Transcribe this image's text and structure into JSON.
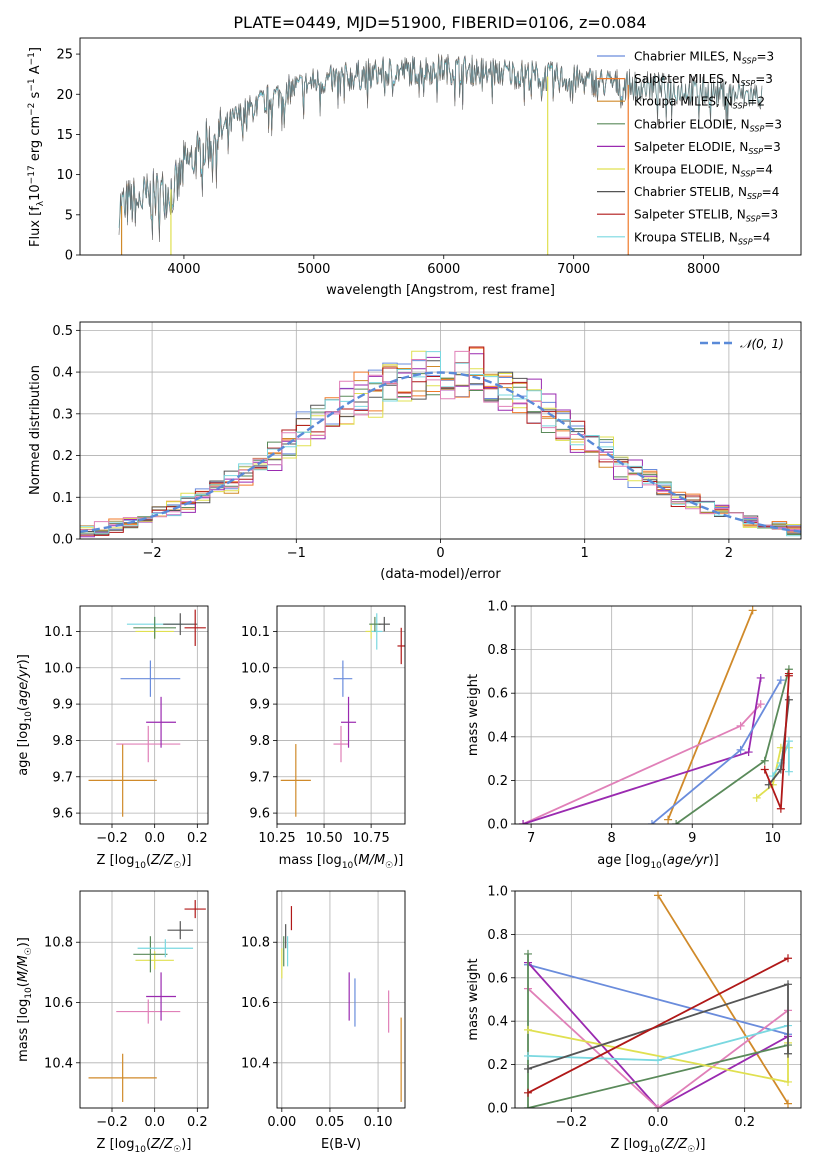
{
  "figure": {
    "title": "PLATE=0449, MJD=51900, FIBERID=0106, z=0.084",
    "colors": {
      "Chabrier MILES": "#6a8cdc",
      "Salpeter MILES": "#f07a2a",
      "Kroupa MILES": "#d08a2a",
      "Chabrier ELODIE": "#5a8a5a",
      "Salpeter ELODIE": "#9a2ab0",
      "Kroupa ELODIE": "#e0e050",
      "Chabrier STELIB": "#555555",
      "Salpeter STELIB": "#b01818",
      "Kroupa STELIB": "#7ad8e0",
      "pink": "#e080b8",
      "gaussian": "#5a8ad8"
    }
  },
  "chart_data": [
    {
      "id": "spectrum",
      "type": "line",
      "title": "PLATE=0449, MJD=51900, FIBERID=0106, z=0.084",
      "xlabel": "wavelength [Angstrom, rest frame]",
      "ylabel": "Flux [f_λ10^-17 erg cm^-2 s^-1 A^-1]",
      "xlim": [
        3200,
        8750
      ],
      "ylim": [
        0,
        27
      ],
      "xticks": [
        4000,
        5000,
        6000,
        7000,
        8000
      ],
      "yticks": [
        0,
        5,
        10,
        15,
        20,
        25
      ],
      "legend": "right",
      "legend_entries": [
        {
          "model": "Chabrier MILES",
          "n": "3"
        },
        {
          "model": "Salpeter MILES",
          "n": "3"
        },
        {
          "model": "Kroupa MILES",
          "n": "2"
        },
        {
          "model": "Chabrier ELODIE",
          "n": "3"
        },
        {
          "model": "Salpeter ELODIE",
          "n": "3"
        },
        {
          "model": "Kroupa ELODIE",
          "n": "4"
        },
        {
          "model": "Chabrier STELIB",
          "n": "4"
        },
        {
          "model": "Salpeter STELIB",
          "n": "3"
        },
        {
          "model": "Kroupa STELIB",
          "n": "4"
        }
      ],
      "continuum": {
        "x": [
          3500,
          3800,
          3950,
          4000,
          4200,
          4400,
          4600,
          4800,
          5000,
          5200,
          5400,
          5600,
          5800,
          6000,
          6200,
          6400,
          6600,
          6800,
          7000,
          7200,
          7400,
          7600,
          7800,
          8000,
          8200,
          8450
        ],
        "y": [
          6,
          7.5,
          8.5,
          11,
          14,
          17,
          19,
          20.5,
          21.5,
          22,
          22.5,
          22.8,
          23,
          23.2,
          23,
          22.8,
          22.5,
          22.2,
          21.8,
          21.5,
          21.2,
          20.9,
          20.6,
          20.3,
          20,
          19.8
        ]
      },
      "model_ranges": [
        {
          "model": "Kroupa STELIB",
          "x": [
            3500,
            8450
          ]
        },
        {
          "model": "Chabrier MILES",
          "x": [
            3540,
            7410
          ]
        },
        {
          "model": "Salpeter MILES",
          "x": [
            3540,
            7410
          ]
        },
        {
          "model": "Kroupa MILES",
          "x": [
            3540,
            7410
          ]
        }
      ],
      "drops": [
        {
          "model": "Kroupa MILES",
          "x": 3520
        },
        {
          "model": "Kroupa ELODIE",
          "x": 3900
        },
        {
          "model": "Kroupa ELODIE",
          "x": 6800
        },
        {
          "model": "Salpeter MILES",
          "x": 7420
        }
      ]
    },
    {
      "id": "residuals",
      "type": "line",
      "xlabel": "(data-model)/error",
      "ylabel": "Normed distribution",
      "xlim": [
        -2.5,
        2.5
      ],
      "ylim": [
        0,
        0.52
      ],
      "xticks": [
        -2,
        -1,
        0,
        1,
        2
      ],
      "yticks": [
        0.0,
        0.1,
        0.2,
        0.3,
        0.4,
        0.5
      ],
      "legend": "top-right",
      "legend_label": "𝒩(0, 1)",
      "bin_width": 0.1
    },
    {
      "id": "age-vs-Z",
      "type": "scatter",
      "xlabel": "Z [log10(Z/Z☉)]",
      "ylabel": "age  [log10(age/yr)]",
      "xlim": [
        -0.35,
        0.25
      ],
      "ylim": [
        9.57,
        10.17
      ],
      "xticks": [
        -0.2,
        0.0,
        0.2
      ],
      "yticks": [
        9.6,
        9.7,
        9.8,
        9.9,
        10.0,
        10.1
      ],
      "points": [
        {
          "model": "Kroupa MILES",
          "x": -0.15,
          "y": 9.69,
          "xerr": 0.16,
          "yerr": 0.1
        },
        {
          "model": "pink",
          "x": -0.03,
          "y": 9.79,
          "xerr": 0.15,
          "yerr": 0.05
        },
        {
          "model": "Salpeter ELODIE",
          "x": 0.03,
          "y": 9.85,
          "xerr": 0.07,
          "yerr": 0.07
        },
        {
          "model": "Chabrier MILES",
          "x": -0.02,
          "y": 9.97,
          "xerr": 0.14,
          "yerr": 0.05
        },
        {
          "model": "Kroupa ELODIE",
          "x": 0.0,
          "y": 10.1,
          "xerr": 0.09,
          "yerr": 0.02
        },
        {
          "model": "Kroupa STELIB",
          "x": 0.0,
          "y": 10.12,
          "xerr": 0.13,
          "yerr": 0.02
        },
        {
          "model": "Chabrier ELODIE",
          "x": 0.0,
          "y": 10.11,
          "xerr": 0.1,
          "yerr": 0.03
        },
        {
          "model": "Chabrier STELIB",
          "x": 0.12,
          "y": 10.12,
          "xerr": 0.08,
          "yerr": 0.03
        },
        {
          "model": "Salpeter STELIB",
          "x": 0.19,
          "y": 10.11,
          "xerr": 0.05,
          "yerr": 0.05
        }
      ]
    },
    {
      "id": "age-vs-mass",
      "type": "scatter",
      "xlabel": "mass [log10(M/M☉)]",
      "ylabel": "",
      "xlim": [
        10.25,
        10.93
      ],
      "ylim": [
        9.57,
        10.17
      ],
      "xticks": [
        10.25,
        10.5,
        10.75
      ],
      "yticks": [
        9.6,
        9.7,
        9.8,
        9.9,
        10.0,
        10.1
      ],
      "points": [
        {
          "model": "Kroupa MILES",
          "x": 10.35,
          "y": 9.69,
          "xerr": 0.08,
          "yerr": 0.1
        },
        {
          "model": "pink",
          "x": 10.59,
          "y": 9.79,
          "xerr": 0.04,
          "yerr": 0.05
        },
        {
          "model": "Salpeter ELODIE",
          "x": 10.63,
          "y": 9.85,
          "xerr": 0.04,
          "yerr": 0.07
        },
        {
          "model": "Chabrier MILES",
          "x": 10.6,
          "y": 9.97,
          "xerr": 0.05,
          "yerr": 0.05
        },
        {
          "model": "Kroupa ELODIE",
          "x": 10.75,
          "y": 10.1,
          "xerr": 0.03,
          "yerr": 0.02
        },
        {
          "model": "Kroupa STELIB",
          "x": 10.78,
          "y": 10.1,
          "xerr": 0.03,
          "yerr": 0.05
        },
        {
          "model": "Chabrier ELODIE",
          "x": 10.77,
          "y": 10.12,
          "xerr": 0.03,
          "yerr": 0.02
        },
        {
          "model": "Chabrier STELIB",
          "x": 10.82,
          "y": 10.12,
          "xerr": 0.03,
          "yerr": 0.02
        },
        {
          "model": "Salpeter STELIB",
          "x": 10.91,
          "y": 10.06,
          "xerr": 0.02,
          "yerr": 0.05
        }
      ]
    },
    {
      "id": "massweight-vs-age",
      "type": "line",
      "xlabel": "age  [log10(age/yr)]",
      "ylabel": "mass weight",
      "xlim": [
        6.8,
        10.35
      ],
      "ylim": [
        0,
        1
      ],
      "xticks": [
        7,
        8,
        9,
        10
      ],
      "yticks": [
        0.0,
        0.2,
        0.4,
        0.6,
        0.8,
        1.0
      ],
      "series": [
        {
          "model": "Kroupa MILES",
          "x": [
            8.7,
            9.75
          ],
          "y": [
            0.02,
            0.98
          ]
        },
        {
          "model": "pink",
          "x": [
            6.9,
            9.6,
            9.85
          ],
          "y": [
            0.0,
            0.45,
            0.55
          ]
        },
        {
          "model": "Salpeter ELODIE",
          "x": [
            6.9,
            9.7,
            9.85
          ],
          "y": [
            0.0,
            0.33,
            0.67
          ]
        },
        {
          "model": "Chabrier MILES",
          "x": [
            8.5,
            9.6,
            10.1
          ],
          "y": [
            0.0,
            0.34,
            0.66
          ]
        },
        {
          "model": "Chabrier ELODIE",
          "x": [
            8.8,
            9.9,
            10.2
          ],
          "y": [
            0.0,
            0.29,
            0.71
          ]
        },
        {
          "model": "Kroupa ELODIE",
          "x": [
            9.8,
            10.0,
            10.1,
            10.2
          ],
          "y": [
            0.12,
            0.18,
            0.35,
            0.35
          ]
        },
        {
          "model": "Kroupa STELIB",
          "x": [
            10.0,
            10.1,
            10.2,
            10.2
          ],
          "y": [
            0.22,
            0.28,
            0.38,
            0.24
          ]
        },
        {
          "model": "Chabrier STELIB",
          "x": [
            9.95,
            10.1,
            10.2
          ],
          "y": [
            0.18,
            0.25,
            0.57
          ]
        },
        {
          "model": "Salpeter STELIB",
          "x": [
            9.9,
            10.1,
            10.2,
            10.2
          ],
          "y": [
            0.25,
            0.07,
            0.68,
            0.69
          ]
        }
      ]
    },
    {
      "id": "mass-vs-Z",
      "type": "scatter",
      "xlabel": "Z [log10(Z/Z☉)]",
      "ylabel": "mass [log10(M/M☉)]",
      "xlim": [
        -0.35,
        0.25
      ],
      "ylim": [
        10.25,
        10.97
      ],
      "xticks": [
        -0.2,
        0.0,
        0.2
      ],
      "yticks": [
        10.4,
        10.6,
        10.8
      ],
      "points": [
        {
          "model": "Kroupa MILES",
          "x": -0.15,
          "y": 10.35,
          "xerr": 0.16,
          "yerr": 0.08
        },
        {
          "model": "pink",
          "x": -0.03,
          "y": 10.57,
          "xerr": 0.15,
          "yerr": 0.04
        },
        {
          "model": "Salpeter ELODIE",
          "x": 0.03,
          "y": 10.62,
          "xerr": 0.07,
          "yerr": 0.08
        },
        {
          "model": "Kroupa ELODIE",
          "x": 0.0,
          "y": 10.74,
          "xerr": 0.09,
          "yerr": 0.03
        },
        {
          "model": "Chabrier ELODIE",
          "x": -0.02,
          "y": 10.76,
          "xerr": 0.08,
          "yerr": 0.06
        },
        {
          "model": "Kroupa STELIB",
          "x": 0.05,
          "y": 10.78,
          "xerr": 0.13,
          "yerr": 0.03
        },
        {
          "model": "Chabrier STELIB",
          "x": 0.12,
          "y": 10.84,
          "xerr": 0.06,
          "yerr": 0.03
        },
        {
          "model": "Salpeter STELIB",
          "x": 0.19,
          "y": 10.91,
          "xerr": 0.05,
          "yerr": 0.03
        }
      ]
    },
    {
      "id": "mass-vs-ebv",
      "type": "scatter",
      "xlabel": "E(B-V)",
      "ylabel": "",
      "xlim": [
        -0.005,
        0.128
      ],
      "ylim": [
        10.25,
        10.97
      ],
      "xticks": [
        0.0,
        0.05,
        0.1
      ],
      "yticks": [
        10.4,
        10.6,
        10.8
      ],
      "points": [
        {
          "model": "Kroupa MILES",
          "x": 0.124,
          "y": 10.41,
          "yerr": 0.14
        },
        {
          "model": "pink",
          "x": 0.111,
          "y": 10.57,
          "yerr": 0.07
        },
        {
          "model": "Chabrier MILES",
          "x": 0.076,
          "y": 10.6,
          "yerr": 0.08
        },
        {
          "model": "Salpeter ELODIE",
          "x": 0.07,
          "y": 10.62,
          "yerr": 0.08
        },
        {
          "model": "Kroupa ELODIE",
          "x": 0.0,
          "y": 10.73,
          "yerr": 0.05
        },
        {
          "model": "Chabrier ELODIE",
          "x": 0.002,
          "y": 10.77,
          "yerr": 0.05
        },
        {
          "model": "Kroupa STELIB",
          "x": 0.006,
          "y": 10.77,
          "yerr": 0.05
        },
        {
          "model": "Chabrier STELIB",
          "x": 0.004,
          "y": 10.82,
          "yerr": 0.04
        },
        {
          "model": "Salpeter STELIB",
          "x": 0.01,
          "y": 10.88,
          "yerr": 0.04
        }
      ]
    },
    {
      "id": "massweight-vs-Z",
      "type": "line",
      "xlabel": "Z [log10(Z/Z☉)]",
      "ylabel": "mass weight",
      "xlim": [
        -0.33,
        0.33
      ],
      "ylim": [
        0,
        1
      ],
      "xticks": [
        -0.2,
        0.0,
        0.2
      ],
      "yticks": [
        0.0,
        0.2,
        0.4,
        0.6,
        0.8,
        1.0
      ],
      "series": [
        {
          "model": "Kroupa MILES",
          "x": [
            0.0,
            0.3
          ],
          "y": [
            0.98,
            0.02
          ]
        },
        {
          "model": "Chabrier MILES",
          "x": [
            -0.3,
            0.3
          ],
          "y": [
            0.66,
            0.34
          ]
        },
        {
          "model": "Salpeter ELODIE",
          "x": [
            -0.3,
            0.0,
            0.3
          ],
          "y": [
            0.67,
            0.0,
            0.33
          ]
        },
        {
          "model": "pink",
          "x": [
            -0.3,
            0.0,
            0.3
          ],
          "y": [
            0.55,
            0.0,
            0.45
          ]
        },
        {
          "model": "Chabrier ELODIE",
          "x": [
            -0.3,
            -0.3,
            0.3
          ],
          "y": [
            0.71,
            0.0,
            0.29
          ]
        },
        {
          "model": "Kroupa ELODIE",
          "x": [
            -0.3,
            0.3,
            0.3
          ],
          "y": [
            0.36,
            0.12,
            0.3
          ]
        },
        {
          "model": "Kroupa STELIB",
          "x": [
            -0.3,
            0.0,
            0.3
          ],
          "y": [
            0.24,
            0.22,
            0.38
          ]
        },
        {
          "model": "Chabrier STELIB",
          "x": [
            -0.3,
            0.3,
            0.3
          ],
          "y": [
            0.18,
            0.57,
            0.25
          ]
        },
        {
          "model": "Salpeter STELIB",
          "x": [
            -0.3,
            0.3
          ],
          "y": [
            0.07,
            0.69
          ]
        }
      ]
    }
  ]
}
